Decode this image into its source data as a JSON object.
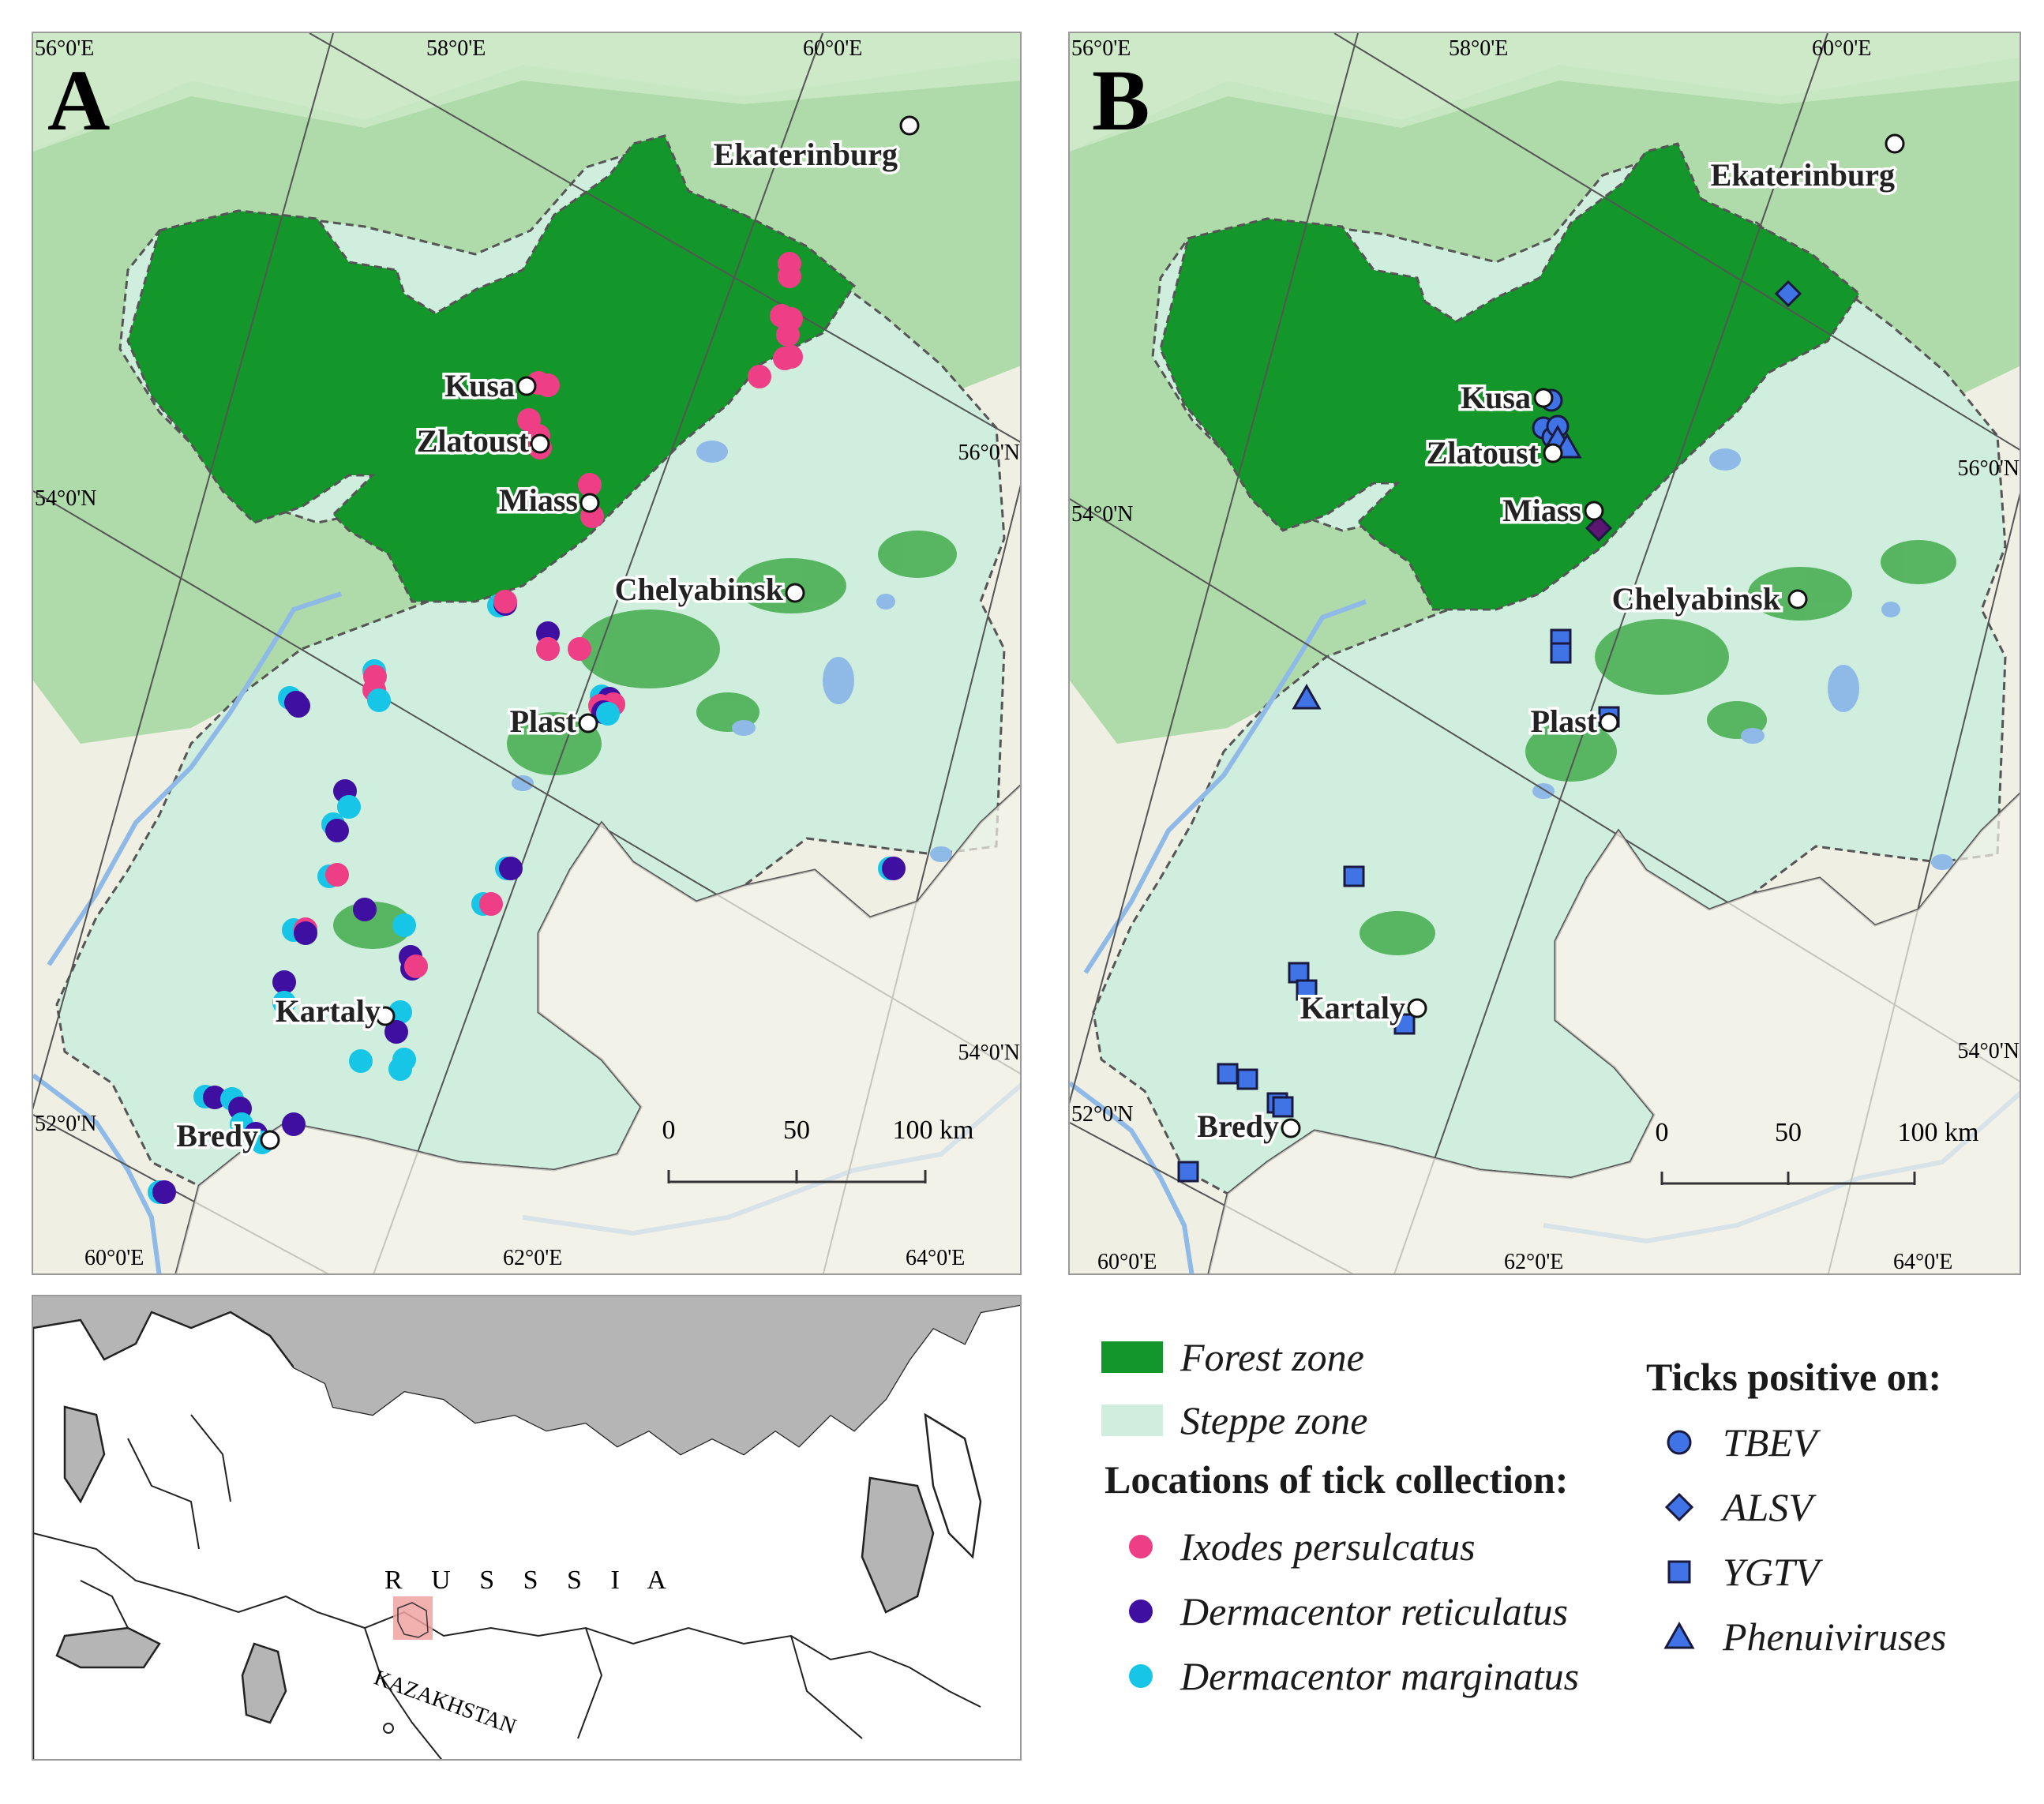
{
  "panel_a": {
    "letter": "A",
    "lon_top": [
      "56°0'E",
      "58°0'E",
      "60°0'E"
    ],
    "lon_bottom": [
      "60°0'E",
      "62°0'E",
      "64°0'E"
    ],
    "lat_left": [
      "54°0'N",
      "52°0'N"
    ],
    "lat_right": [
      "56°0'N",
      "54°0'N"
    ],
    "cities": [
      "Ekaterinburg",
      "Kusa",
      "Zlatoust",
      "Miass",
      "Chelyabinsk",
      "Plast",
      "Kartaly",
      "Bredy"
    ],
    "scale": [
      "0",
      "50",
      "100 km"
    ]
  },
  "panel_b": {
    "letter": "B",
    "lon_top": [
      "56°0'E",
      "58°0'E",
      "60°0'E"
    ],
    "lon_bottom": [
      "60°0'E",
      "62°0'E",
      "64°0'E"
    ],
    "lat_left": [
      "54°0'N",
      "52°0'N"
    ],
    "lat_right": [
      "56°0'N",
      "54°0'N"
    ],
    "cities": [
      "Ekaterinburg",
      "Kusa",
      "Zlatoust",
      "Miass",
      "Chelyabinsk",
      "Plast",
      "Kartaly",
      "Bredy"
    ],
    "scale": [
      "0",
      "50",
      "100 km"
    ]
  },
  "inset": {
    "country": "R U S S S I A",
    "neighbor": "KAZAKHSTAN"
  },
  "legend": {
    "zones": [
      {
        "label": "Forest zone",
        "color": "#13962a"
      },
      {
        "label": "Steppe zone",
        "color": "#cfeedd"
      }
    ],
    "collection_title": "Locations of tick collection:",
    "species": [
      {
        "label": "Ixodes persulcatus",
        "color": "#ee3f86"
      },
      {
        "label": "Dermacentor reticulatus",
        "color": "#3e0fa0"
      },
      {
        "label": "Dermacentor marginatus",
        "color": "#17c5e6"
      }
    ],
    "positive_title": "Ticks positive on:",
    "viruses": [
      {
        "label": "TBEV",
        "shape": "circle"
      },
      {
        "label": "ALSV",
        "shape": "diamond"
      },
      {
        "label": "YGTV",
        "shape": "square"
      },
      {
        "label": "Phenuiviruses",
        "shape": "triangle"
      }
    ],
    "marker_color": "#3f73e6"
  },
  "colors": {
    "background_terrain": "#efefe3",
    "forest_outside": "#8fce8c",
    "forest_zone": "#13962a",
    "steppe_zone": "#cfeedd",
    "water": "#8fb9e6",
    "land_inset": "#ffffff",
    "sea_inset": "#b5b5b5",
    "inset_highlight": "#f0a3a0"
  }
}
